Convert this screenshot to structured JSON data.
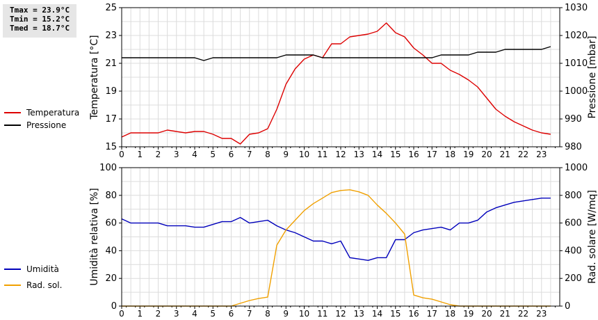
{
  "stats": {
    "tmax": "Tmax = 23.9°C",
    "tmin": "Tmin = 15.2°C",
    "tmed": "Tmed = 18.7°C"
  },
  "chart_data": [
    {
      "type": "line",
      "ylabel_left": "Temperatura [°C]",
      "ylabel_right": "Pressione [mbar]",
      "xlim": [
        0,
        24
      ],
      "ylim_left": [
        15,
        25
      ],
      "ylim_right": [
        980,
        1030
      ],
      "x_ticks": [
        "0",
        "1",
        "2",
        "3",
        "4",
        "5",
        "6",
        "7",
        "8",
        "9",
        "10",
        "11",
        "12",
        "13",
        "14",
        "15",
        "16",
        "17",
        "18",
        "19",
        "20",
        "21",
        "22",
        "23"
      ],
      "y_ticks_left": [
        "15",
        "17",
        "19",
        "21",
        "23",
        "25"
      ],
      "y_ticks_right": [
        "980",
        "990",
        "1000",
        "1010",
        "1020",
        "1030"
      ],
      "grid": true,
      "legend": [
        {
          "name": "Temperatura",
          "color": "#dd0000"
        },
        {
          "name": "Pressione",
          "color": "#000000"
        }
      ],
      "series": [
        {
          "name": "Temperatura",
          "axis": "left",
          "color": "#dd0000",
          "x": [
            0,
            0.5,
            1,
            1.5,
            2,
            2.5,
            3,
            3.5,
            4,
            4.5,
            5,
            5.5,
            6,
            6.5,
            7,
            7.5,
            8,
            8.5,
            9,
            9.5,
            10,
            10.5,
            11,
            11.5,
            12,
            12.5,
            13,
            13.5,
            14,
            14.5,
            15,
            15.5,
            16,
            16.5,
            17,
            17.5,
            18,
            18.5,
            19,
            19.5,
            20,
            20.5,
            21,
            21.5,
            22,
            22.5,
            23,
            23.5
          ],
          "y": [
            15.7,
            16.0,
            16.0,
            16.0,
            16.0,
            16.2,
            16.1,
            16.0,
            16.1,
            16.1,
            15.9,
            15.6,
            15.6,
            15.2,
            15.9,
            16.0,
            16.3,
            17.7,
            19.5,
            20.6,
            21.3,
            21.6,
            21.4,
            22.4,
            22.4,
            22.9,
            23.0,
            23.1,
            23.3,
            23.9,
            23.2,
            22.9,
            22.1,
            21.6,
            21.0,
            21.0,
            20.5,
            20.2,
            19.8,
            19.3,
            18.5,
            17.7,
            17.2,
            16.8,
            16.5,
            16.2,
            16.0,
            15.9
          ]
        },
        {
          "name": "Pressione",
          "axis": "right",
          "color": "#000000",
          "x": [
            0,
            0.5,
            1,
            1.5,
            2,
            2.5,
            3,
            3.5,
            4,
            4.5,
            5,
            5.5,
            6,
            6.5,
            7,
            7.5,
            8,
            8.5,
            9,
            9.5,
            10,
            10.5,
            11,
            11.5,
            12,
            12.5,
            13,
            13.5,
            14,
            14.5,
            15,
            15.5,
            16,
            16.5,
            17,
            17.5,
            18,
            18.5,
            19,
            19.5,
            20,
            20.5,
            21,
            21.5,
            22,
            22.5,
            23,
            23.5
          ],
          "y": [
            1012,
            1012,
            1012,
            1012,
            1012,
            1012,
            1012,
            1012,
            1012,
            1011,
            1012,
            1012,
            1012,
            1012,
            1012,
            1012,
            1012,
            1012,
            1013,
            1013,
            1013,
            1013,
            1012,
            1012,
            1012,
            1012,
            1012,
            1012,
            1012,
            1012,
            1012,
            1012,
            1012,
            1012,
            1012,
            1013,
            1013,
            1013,
            1013,
            1014,
            1014,
            1014,
            1015,
            1015,
            1015,
            1015,
            1015,
            1016
          ]
        }
      ]
    },
    {
      "type": "line",
      "ylabel_left": "Umidità relativa [%]",
      "ylabel_right": "Rad. solare [W/mq]",
      "xlim": [
        0,
        24
      ],
      "ylim_left": [
        0,
        100
      ],
      "ylim_right": [
        0,
        1000
      ],
      "x_ticks": [
        "0",
        "1",
        "2",
        "3",
        "4",
        "5",
        "6",
        "7",
        "8",
        "9",
        "10",
        "11",
        "12",
        "13",
        "14",
        "15",
        "16",
        "17",
        "18",
        "19",
        "20",
        "21",
        "22",
        "23"
      ],
      "y_ticks_left": [
        "0",
        "20",
        "40",
        "60",
        "80",
        "100"
      ],
      "y_ticks_right": [
        "0",
        "200",
        "400",
        "600",
        "800",
        "1000"
      ],
      "grid": true,
      "legend": [
        {
          "name": "Umidità",
          "color": "#0000bb"
        },
        {
          "name": "Rad. sol.",
          "color": "#f0a000"
        }
      ],
      "series": [
        {
          "name": "Umidità",
          "axis": "left",
          "color": "#0000bb",
          "x": [
            0,
            0.5,
            1,
            1.5,
            2,
            2.5,
            3,
            3.5,
            4,
            4.5,
            5,
            5.5,
            6,
            6.5,
            7,
            7.5,
            8,
            8.5,
            9,
            9.5,
            10,
            10.5,
            11,
            11.5,
            12,
            12.5,
            13,
            13.5,
            14,
            14.5,
            15,
            15.5,
            16,
            16.5,
            17,
            17.5,
            18,
            18.5,
            19,
            19.5,
            20,
            20.5,
            21,
            21.5,
            22,
            22.5,
            23,
            23.5
          ],
          "y": [
            63,
            60,
            60,
            60,
            60,
            58,
            58,
            58,
            57,
            57,
            59,
            61,
            61,
            64,
            60,
            61,
            62,
            58,
            55,
            53,
            50,
            47,
            47,
            45,
            47,
            35,
            34,
            33,
            35,
            35,
            48,
            48,
            53,
            55,
            56,
            57,
            55,
            60,
            60,
            62,
            68,
            71,
            73,
            75,
            76,
            77,
            78,
            78
          ]
        },
        {
          "name": "Rad. sol.",
          "axis": "right",
          "color": "#f0a000",
          "x": [
            0,
            0.5,
            1,
            1.5,
            2,
            2.5,
            3,
            3.5,
            4,
            4.5,
            5,
            5.5,
            6,
            6.5,
            7,
            7.5,
            8,
            8.5,
            9,
            9.5,
            10,
            10.5,
            11,
            11.5,
            12,
            12.5,
            13,
            13.5,
            14,
            14.5,
            15,
            15.5,
            16,
            16.5,
            17,
            17.5,
            18,
            18.5,
            19,
            19.5,
            20,
            20.5,
            21,
            21.5,
            22,
            22.5,
            23,
            23.5
          ],
          "y": [
            0,
            0,
            0,
            0,
            0,
            0,
            0,
            0,
            0,
            0,
            0,
            0,
            0,
            20,
            40,
            55,
            65,
            440,
            550,
            620,
            690,
            740,
            780,
            820,
            835,
            840,
            825,
            800,
            730,
            670,
            600,
            520,
            80,
            60,
            50,
            30,
            10,
            0,
            0,
            0,
            0,
            0,
            0,
            0,
            0,
            0,
            0,
            0
          ]
        }
      ]
    }
  ]
}
